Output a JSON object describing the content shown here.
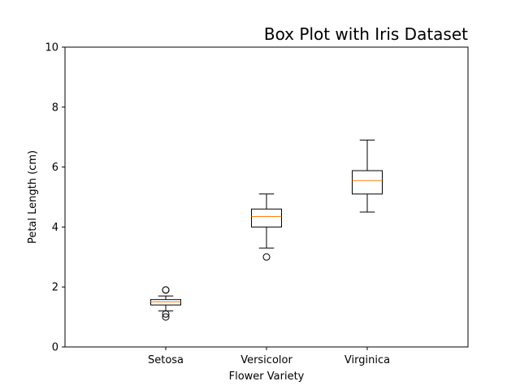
{
  "chart_data": {
    "type": "box",
    "title": "Box Plot with Iris Dataset",
    "xlabel": "Flower Variety",
    "ylabel": "Petal Length (cm)",
    "ylim": [
      0,
      10
    ],
    "yticks": [
      0,
      2,
      4,
      6,
      8,
      10
    ],
    "grid": false,
    "categories": [
      "Setosa",
      "Versicolor",
      "Virginica"
    ],
    "boxes": [
      {
        "category": "Setosa",
        "whisker_low": 1.2,
        "q1": 1.4,
        "median": 1.5,
        "q3": 1.58,
        "whisker_high": 1.7,
        "outliers": [
          1.0,
          1.1,
          1.9,
          1.9
        ]
      },
      {
        "category": "Versicolor",
        "whisker_low": 3.3,
        "q1": 4.0,
        "median": 4.35,
        "q3": 4.6,
        "whisker_high": 5.1,
        "outliers": [
          3.0
        ]
      },
      {
        "category": "Virginica",
        "whisker_low": 4.5,
        "q1": 5.1,
        "median": 5.55,
        "q3": 5.88,
        "whisker_high": 6.9,
        "outliers": []
      }
    ],
    "colors": {
      "box": "#000000",
      "median": "#ff7f0e",
      "outlier": "#000000"
    }
  }
}
